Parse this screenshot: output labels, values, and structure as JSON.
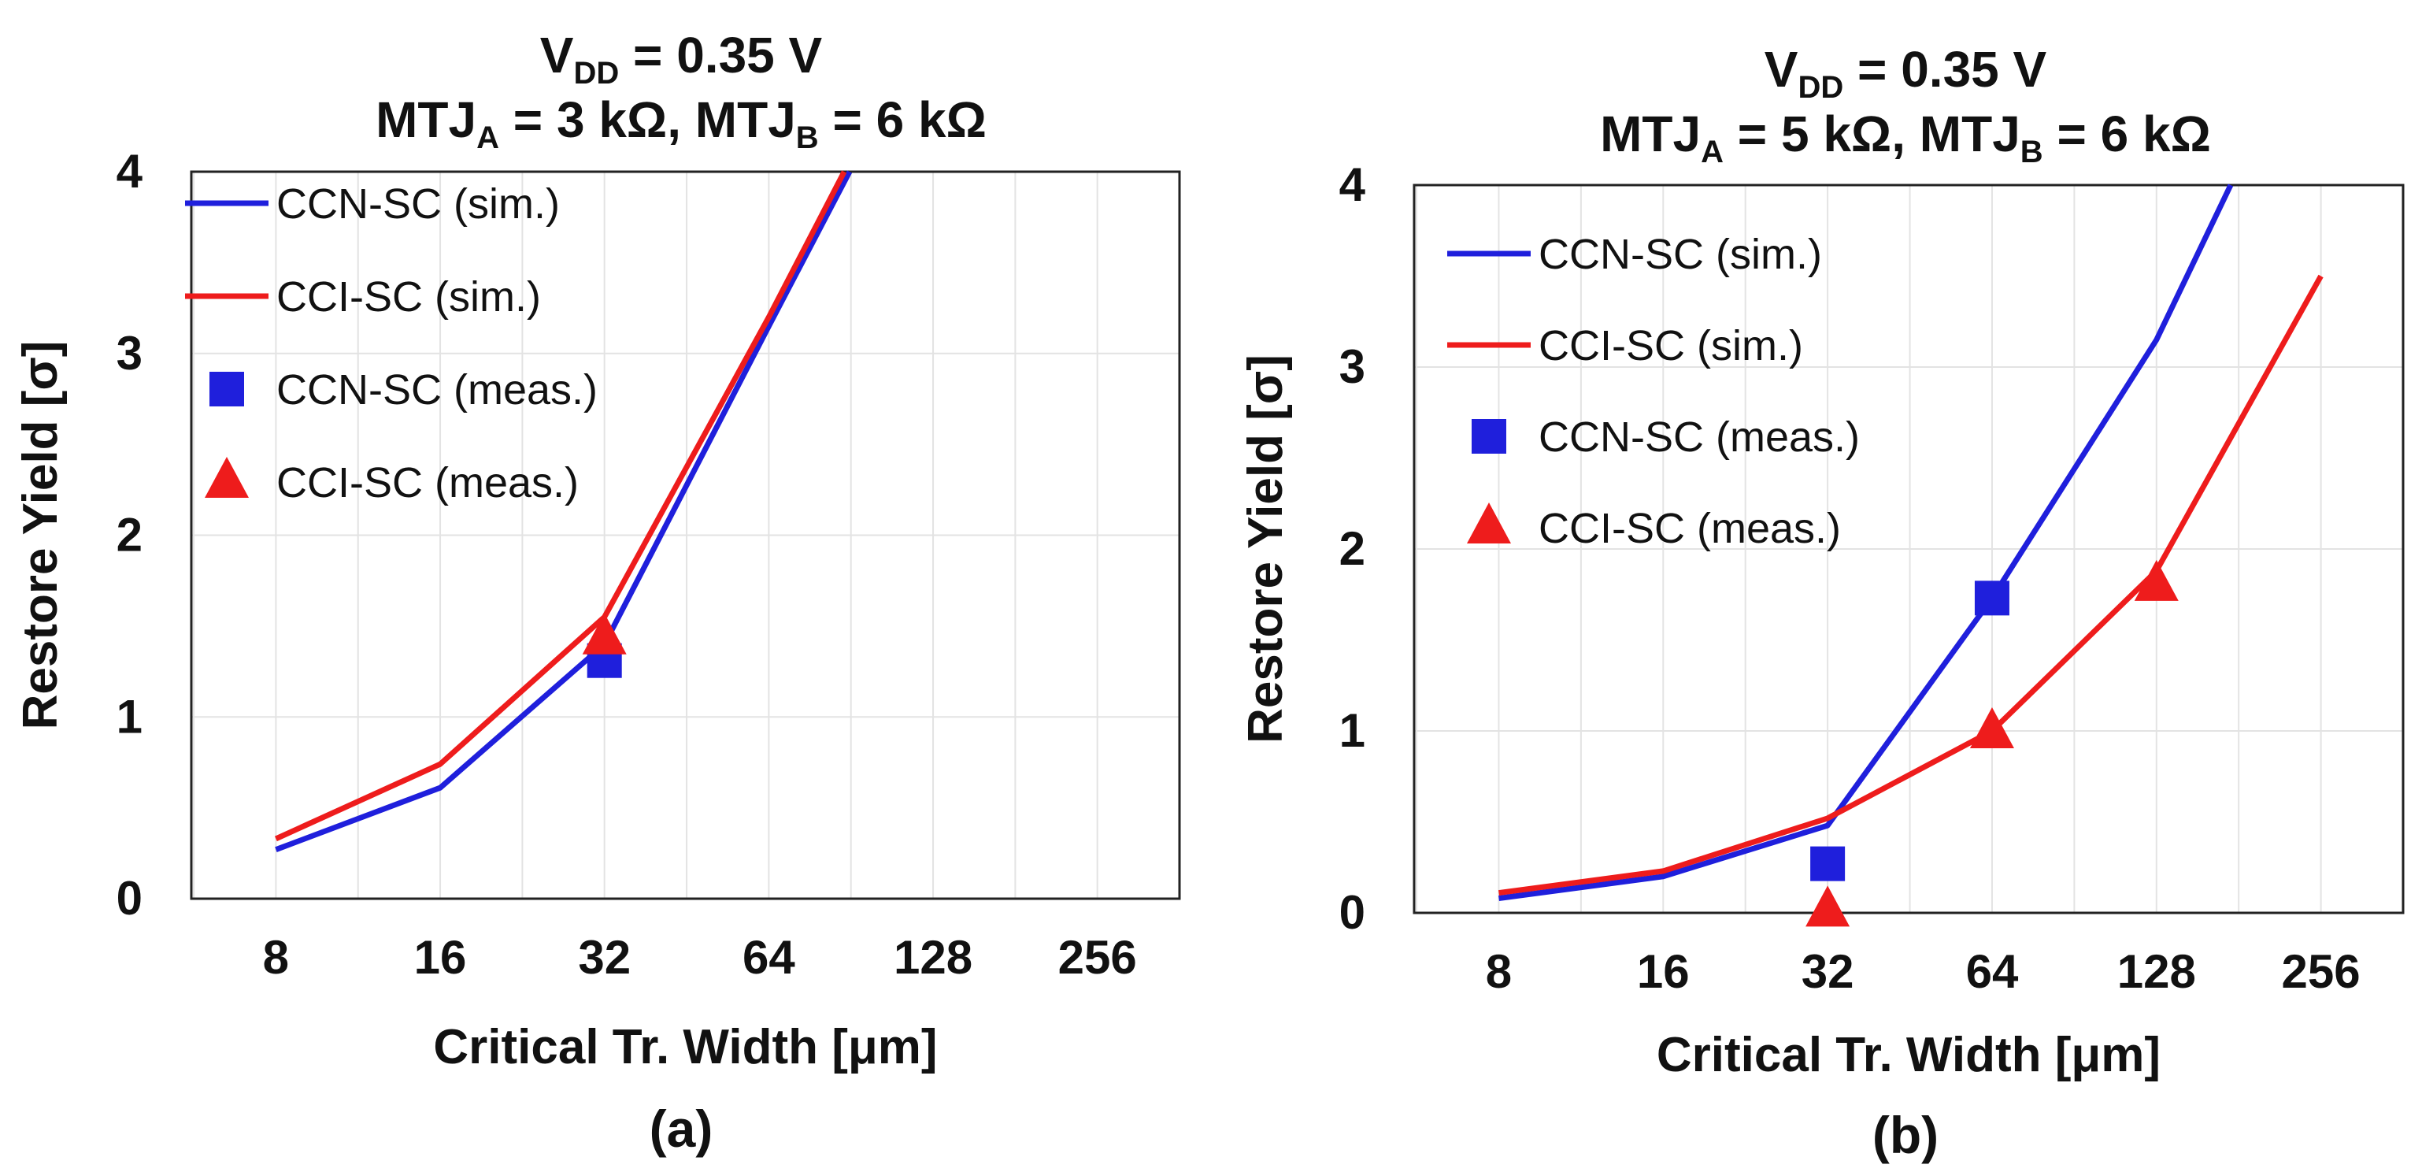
{
  "chart_data": [
    {
      "type": "line",
      "panel_label": "(a)",
      "title_parts": {
        "line1": {
          "v": "V",
          "v_sub": "DD",
          "rest": " = 0.35 V"
        },
        "line2": {
          "a": "MTJ",
          "a_sub": "A",
          "a_rest": " = 3 kΩ, ",
          "b": "MTJ",
          "b_sub": "B",
          "b_rest": " = 6 kΩ"
        }
      },
      "xlabel": "Critical Tr. Width [μm]",
      "ylabel": "Restore Yield [σ]",
      "x_scale": "log2",
      "x_ticks": [
        "8",
        "16",
        "32",
        "64",
        "128",
        "256"
      ],
      "y_ticks": [
        "0",
        "1",
        "2",
        "3",
        "4"
      ],
      "xlim": [
        5.6,
        362
      ],
      "ylim": [
        0,
        4
      ],
      "legend_position": "top-left",
      "series": [
        {
          "name": "CCN-SC (sim.)",
          "kind": "line",
          "color": "#1f1fdc",
          "x": [
            8,
            16,
            32,
            64,
            90
          ],
          "y": [
            0.27,
            0.61,
            1.4,
            3.15,
            4.0
          ]
        },
        {
          "name": "CCI-SC (sim.)",
          "kind": "line",
          "color": "#ee1c1c",
          "x": [
            8,
            16,
            32,
            64,
            88
          ],
          "y": [
            0.33,
            0.74,
            1.55,
            3.2,
            4.0
          ]
        },
        {
          "name": "CCN-SC (meas.)",
          "kind": "square",
          "color": "#1f1fdc",
          "x": [
            32
          ],
          "y": [
            1.31
          ]
        },
        {
          "name": "CCI-SC (meas.)",
          "kind": "triangle",
          "color": "#ee1c1c",
          "x": [
            32
          ],
          "y": [
            1.44
          ]
        }
      ]
    },
    {
      "type": "line",
      "panel_label": "(b)",
      "title_parts": {
        "line1": {
          "v": "V",
          "v_sub": "DD",
          "rest": " = 0.35 V"
        },
        "line2": {
          "a": "MTJ",
          "a_sub": "A",
          "a_rest": " = 5 kΩ, ",
          "b": "MTJ",
          "b_sub": "B",
          "b_rest": " = 6 kΩ"
        }
      },
      "xlabel": "Critical Tr. Width [μm]",
      "ylabel": "Restore Yield [σ]",
      "x_scale": "log2",
      "x_ticks": [
        "8",
        "16",
        "32",
        "64",
        "128",
        "256"
      ],
      "y_ticks": [
        "0",
        "1",
        "2",
        "3",
        "4"
      ],
      "xlim": [
        5.6,
        362
      ],
      "ylim": [
        0,
        4
      ],
      "legend_position": "top-left",
      "series": [
        {
          "name": "CCN-SC (sim.)",
          "kind": "line",
          "color": "#1f1fdc",
          "x": [
            8,
            16,
            32,
            64,
            128,
            175
          ],
          "y": [
            0.08,
            0.2,
            0.48,
            1.73,
            3.15,
            4.0
          ]
        },
        {
          "name": "CCI-SC (sim.)",
          "kind": "line",
          "color": "#ee1c1c",
          "x": [
            8,
            16,
            32,
            64,
            128,
            256
          ],
          "y": [
            0.11,
            0.23,
            0.52,
            1.0,
            1.88,
            3.5
          ]
        },
        {
          "name": "CCN-SC (meas.)",
          "kind": "square",
          "color": "#1f1fdc",
          "x": [
            32,
            64
          ],
          "y": [
            0.27,
            1.73
          ]
        },
        {
          "name": "CCI-SC (meas.)",
          "kind": "triangle",
          "color": "#ee1c1c",
          "x": [
            32,
            64,
            128
          ],
          "y": [
            0.02,
            1.0,
            1.81
          ]
        }
      ]
    }
  ]
}
